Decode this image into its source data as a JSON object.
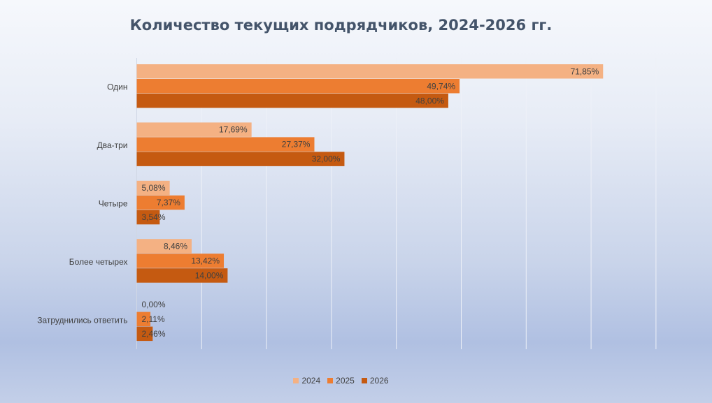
{
  "chart_data": {
    "type": "bar",
    "orientation": "horizontal",
    "title": "Количество текущих подрядчиков, 2024-2026 гг.",
    "categories": [
      "Один",
      "Два-три",
      "Четыре",
      "Более четырех",
      "Затруднились ответить"
    ],
    "series": [
      {
        "name": "2024",
        "color": "#f4b183",
        "values": [
          71.85,
          17.69,
          5.08,
          8.46,
          0.0
        ],
        "labels": [
          "71,85%",
          "17,69%",
          "5,08%",
          "8,46%",
          "0,00%"
        ]
      },
      {
        "name": "2025",
        "color": "#ed7d31",
        "values": [
          49.74,
          27.37,
          7.37,
          13.42,
          2.11
        ],
        "labels": [
          "49,74%",
          "27,37%",
          "7,37%",
          "13,42%",
          "2,11%"
        ]
      },
      {
        "name": "2026",
        "color": "#c55a11",
        "values": [
          48.0,
          32.0,
          3.54,
          14.0,
          2.46
        ],
        "labels": [
          "48,00%",
          "32,00%",
          "3,54%",
          "14,00%",
          "2,46%"
        ]
      }
    ],
    "xlim": [
      0,
      80
    ],
    "grid": true,
    "legend_position": "bottom"
  }
}
